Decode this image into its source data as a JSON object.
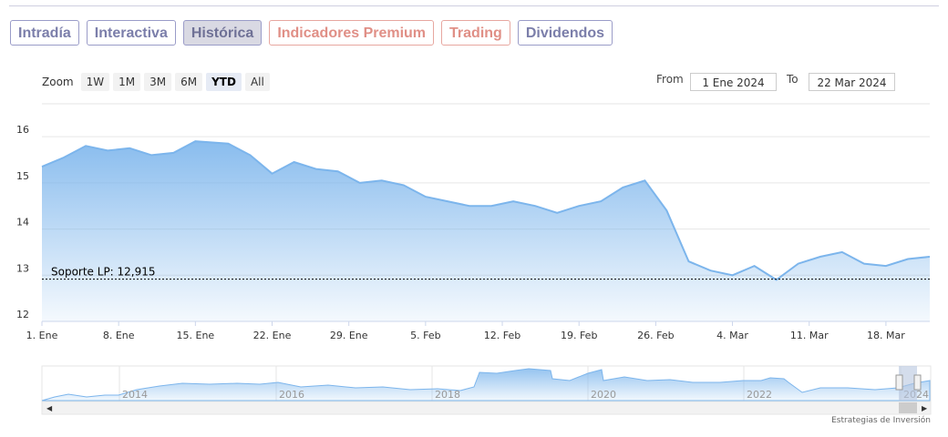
{
  "tabs": [
    {
      "label": "Intradía",
      "style": "normal"
    },
    {
      "label": "Interactiva",
      "style": "normal"
    },
    {
      "label": "Histórica",
      "style": "active"
    },
    {
      "label": "Indicadores Premium",
      "style": "premium"
    },
    {
      "label": "Trading",
      "style": "premium"
    },
    {
      "label": "Dividendos",
      "style": "normal"
    }
  ],
  "zoom": {
    "label": "Zoom",
    "buttons": [
      "1W",
      "1M",
      "3M",
      "6M",
      "YTD",
      "All"
    ],
    "selected": "YTD"
  },
  "range": {
    "from_label": "From",
    "from_value": "1 Ene 2024",
    "to_label": "To",
    "to_value": "22 Mar 2024"
  },
  "credit": "Estrategias de Inversión",
  "colors": {
    "line": "#7cb5ec",
    "tab_border": "#9a9cc8",
    "premium": "#e08f86"
  },
  "chart_data": {
    "type": "area",
    "x_ticks": [
      "1. Ene",
      "8. Ene",
      "15. Ene",
      "22. Ene",
      "29. Ene",
      "5. Feb",
      "12. Feb",
      "19. Feb",
      "26. Feb",
      "4. Mar",
      "11. Mar",
      "18. Mar"
    ],
    "y_ticks": [
      12,
      13,
      14,
      15,
      16
    ],
    "ylim": [
      12,
      16.2
    ],
    "grid": true,
    "x_start": "2024-01-01",
    "x_end": "2024-03-22",
    "series": [
      {
        "x": [
          "2024-01-01",
          "2024-01-03",
          "2024-01-05",
          "2024-01-07",
          "2024-01-09",
          "2024-01-11",
          "2024-01-13",
          "2024-01-15",
          "2024-01-18",
          "2024-01-20",
          "2024-01-22",
          "2024-01-24",
          "2024-01-26",
          "2024-01-28",
          "2024-01-30",
          "2024-02-01",
          "2024-02-03",
          "2024-02-05",
          "2024-02-07",
          "2024-02-09",
          "2024-02-11",
          "2024-02-13",
          "2024-02-15",
          "2024-02-17",
          "2024-02-19",
          "2024-02-21",
          "2024-02-23",
          "2024-02-25",
          "2024-02-27",
          "2024-02-29",
          "2024-03-02",
          "2024-03-04",
          "2024-03-06",
          "2024-03-08",
          "2024-03-10",
          "2024-03-12",
          "2024-03-14",
          "2024-03-16",
          "2024-03-18",
          "2024-03-20",
          "2024-03-22"
        ],
        "values": [
          15.35,
          15.55,
          15.8,
          15.7,
          15.75,
          15.6,
          15.65,
          15.9,
          15.85,
          15.6,
          15.2,
          15.45,
          15.3,
          15.25,
          15.0,
          15.05,
          14.95,
          14.7,
          14.6,
          14.5,
          14.5,
          14.6,
          14.5,
          14.35,
          14.5,
          14.6,
          14.9,
          15.05,
          14.4,
          13.3,
          13.1,
          13.0,
          13.2,
          12.9,
          13.25,
          13.4,
          13.5,
          13.25,
          13.2,
          13.35,
          13.4
        ]
      }
    ],
    "annotations": [
      {
        "text": "Soporte LP: 12,915",
        "y": 12.915
      }
    ],
    "navigator": {
      "x_ticks": [
        "2014",
        "2016",
        "2018",
        "2020",
        "2022",
        "2024"
      ]
    }
  }
}
